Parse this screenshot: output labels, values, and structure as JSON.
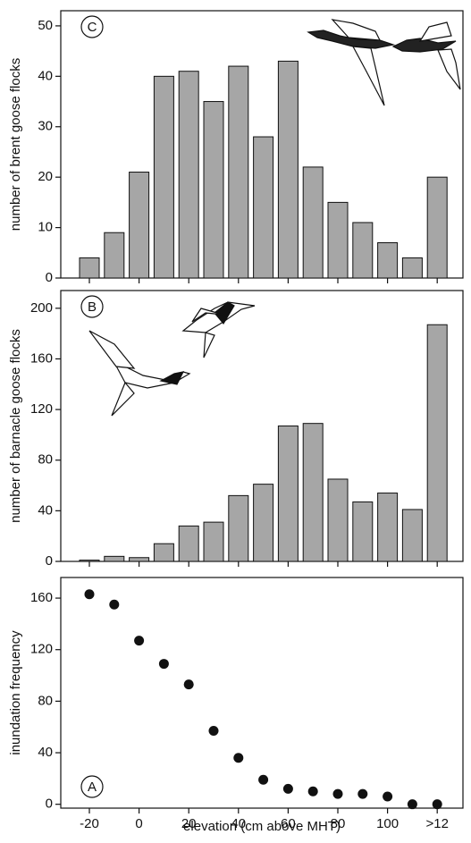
{
  "chart_data": [
    {
      "type": "bar",
      "panel_label": "C",
      "ylabel": "number of brent goose flocks",
      "values": [
        4,
        9,
        21,
        40,
        41,
        35,
        42,
        28,
        43,
        22,
        15,
        11,
        7,
        4,
        20
      ],
      "color": "#a6a6a6",
      "ylim": [
        0,
        53
      ],
      "yticks": [
        0,
        10,
        20,
        30,
        40,
        50
      ]
    },
    {
      "type": "bar",
      "panel_label": "B",
      "ylabel": "number of barnacle goose flocks",
      "values": [
        1,
        4,
        3,
        14,
        28,
        31,
        52,
        61,
        107,
        109,
        65,
        47,
        54,
        41,
        187
      ],
      "color": "#a6a6a6",
      "ylim": [
        0,
        214
      ],
      "yticks": [
        0,
        40,
        80,
        120,
        160,
        200
      ]
    },
    {
      "type": "scatter",
      "panel_label": "A",
      "ylabel": "inundation frequency",
      "xlabel": "elevation (cm above MHT)",
      "categories": [
        "-20",
        null,
        "0",
        null,
        "20",
        null,
        "40",
        null,
        "60",
        null,
        "80",
        null,
        "100",
        null,
        ">12"
      ],
      "values": [
        163,
        155,
        127,
        109,
        93,
        57,
        36,
        19,
        12,
        10,
        8,
        8,
        6,
        0,
        0
      ],
      "color": "#111111",
      "ylim": [
        -3,
        176
      ],
      "yticks": [
        0,
        40,
        80,
        120,
        160
      ]
    }
  ]
}
